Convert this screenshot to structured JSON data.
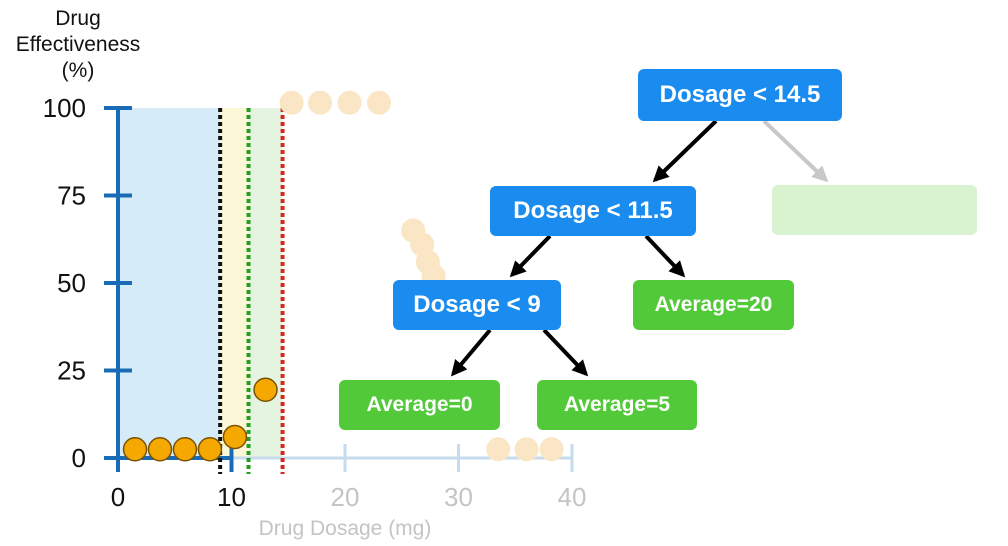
{
  "chart_data": {
    "type": "scatter",
    "ylabel_lines": [
      "Drug",
      "Effectiveness",
      "(%)"
    ],
    "xlabel": "Drug Dosage (mg)",
    "xlim": [
      0,
      40
    ],
    "ylim": [
      0,
      100
    ],
    "x_ticks": [
      "0",
      "10",
      "20",
      "30",
      "40"
    ],
    "y_ticks": [
      "0",
      "25",
      "50",
      "75",
      "100"
    ],
    "highlighted_points": [
      {
        "x": 1.5,
        "y": 2.5
      },
      {
        "x": 3.7,
        "y": 2.5
      },
      {
        "x": 5.9,
        "y": 2.5
      },
      {
        "x": 8.1,
        "y": 2.5
      },
      {
        "x": 10.3,
        "y": 6
      },
      {
        "x": 13,
        "y": 19.5
      }
    ],
    "faded_points": [
      {
        "x": 15.3,
        "y": 101.5
      },
      {
        "x": 17.8,
        "y": 101.5
      },
      {
        "x": 20.4,
        "y": 101.5
      },
      {
        "x": 23,
        "y": 101.5
      },
      {
        "x": 26,
        "y": 65
      },
      {
        "x": 26.8,
        "y": 61
      },
      {
        "x": 27.3,
        "y": 56
      },
      {
        "x": 27.8,
        "y": 52
      },
      {
        "x": 33.5,
        "y": 2.5
      },
      {
        "x": 36,
        "y": 2.5
      },
      {
        "x": 38.2,
        "y": 2.5
      }
    ],
    "thresholds": [
      {
        "x": 9,
        "color": "#111111"
      },
      {
        "x": 11.5,
        "color": "#1f9e1f"
      },
      {
        "x": 14.5,
        "color": "#d42a1e"
      }
    ],
    "regions": [
      {
        "from": 0,
        "to": 9,
        "color": "#d6ebf8"
      },
      {
        "from": 9,
        "to": 11.5,
        "color": "#fbf7d7"
      },
      {
        "from": 11.5,
        "to": 14.5,
        "color": "#e4f4e0"
      }
    ]
  },
  "tree": {
    "root": "Dosage < 14.5",
    "node2": "Dosage < 11.5",
    "node3": "Dosage < 9",
    "leaf_20": "Average=20",
    "leaf_0": "Average=0",
    "leaf_5": "Average=5"
  },
  "colors": {
    "axis": "#1a6bb5",
    "axis_faded": "#c6dcee",
    "point": "#f5a900",
    "point_faded": "#fae6c4",
    "node_blue": "#1a8cf0",
    "node_green": "#52c939",
    "node_faded": "#ccefc2"
  }
}
